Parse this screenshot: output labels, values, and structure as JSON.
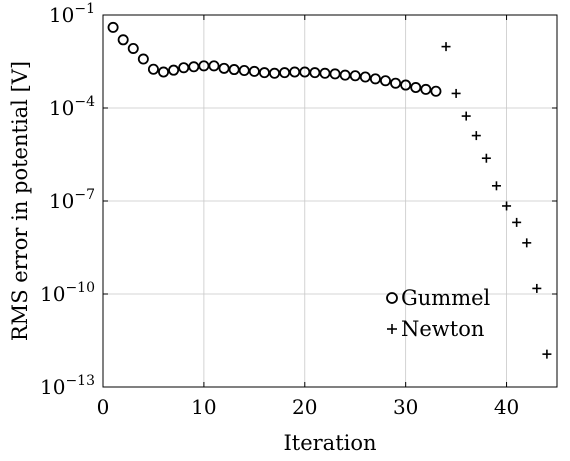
{
  "chart_data": {
    "type": "scatter",
    "xlabel": "Iteration",
    "ylabel": "RMS error in potential [V]",
    "xlim": [
      0,
      45
    ],
    "ylim_log10": [
      -13,
      -1
    ],
    "yscale": "log",
    "grid": true,
    "legend_position": "bottom-right",
    "xticks": [
      {
        "value": 0,
        "label": "0"
      },
      {
        "value": 10,
        "label": "10"
      },
      {
        "value": 20,
        "label": "20"
      },
      {
        "value": 30,
        "label": "30"
      },
      {
        "value": 40,
        "label": "40"
      }
    ],
    "yticks": [
      {
        "exp": -1,
        "base": "10",
        "sup": "−1"
      },
      {
        "exp": -4,
        "base": "10",
        "sup": "−4"
      },
      {
        "exp": -7,
        "base": "10",
        "sup": "−7"
      },
      {
        "exp": -10,
        "base": "10",
        "sup": "−10"
      },
      {
        "exp": -13,
        "base": "10",
        "sup": "−13"
      }
    ],
    "series": [
      {
        "name": "Gummel",
        "marker": "circle",
        "x": [
          1,
          2,
          3,
          4,
          5,
          6,
          7,
          8,
          9,
          10,
          11,
          12,
          13,
          14,
          15,
          16,
          17,
          18,
          19,
          20,
          21,
          22,
          23,
          24,
          25,
          26,
          27,
          28,
          29,
          30,
          31,
          32,
          33
        ],
        "log10_y": [
          -1.4,
          -1.8,
          -2.08,
          -2.42,
          -2.75,
          -2.84,
          -2.78,
          -2.7,
          -2.67,
          -2.64,
          -2.64,
          -2.72,
          -2.76,
          -2.79,
          -2.82,
          -2.86,
          -2.88,
          -2.86,
          -2.84,
          -2.84,
          -2.86,
          -2.88,
          -2.9,
          -2.94,
          -2.96,
          -3.0,
          -3.06,
          -3.12,
          -3.2,
          -3.26,
          -3.34,
          -3.4,
          -3.46
        ]
      },
      {
        "name": "Newton",
        "marker": "plus",
        "x": [
          34,
          35,
          36,
          37,
          38,
          39,
          40,
          41,
          42,
          43,
          44
        ],
        "log10_y": [
          -2.02,
          -3.53,
          -4.26,
          -4.89,
          -5.62,
          -6.51,
          -7.16,
          -7.69,
          -8.35,
          -9.82,
          -11.94
        ]
      }
    ]
  },
  "legend": {
    "items": [
      {
        "label": "Gummel",
        "marker": "circle"
      },
      {
        "label": "Newton",
        "marker": "plus"
      }
    ]
  }
}
